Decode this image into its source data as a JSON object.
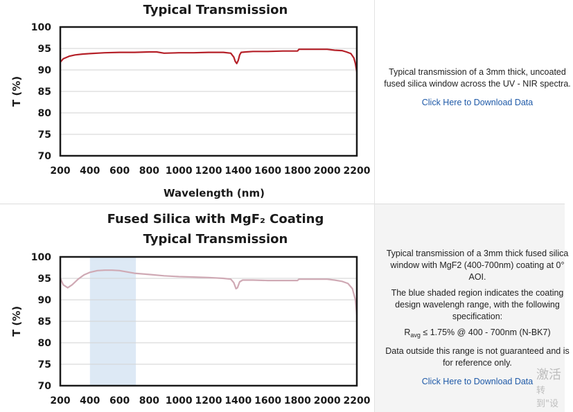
{
  "charts": [
    {
      "type": "line",
      "title_lines": [
        "Typical Transmission"
      ],
      "xlabel": "Wavelength (nm)",
      "ylabel": "T (%)",
      "xlim": [
        200,
        2200
      ],
      "ylim": [
        70,
        100
      ],
      "xticks": [
        200,
        400,
        600,
        800,
        1000,
        1200,
        1400,
        1600,
        1800,
        2000,
        2200
      ],
      "yticks": [
        70,
        75,
        80,
        85,
        90,
        95,
        100
      ],
      "grid": true,
      "line_color": "#b52028",
      "series": [
        {
          "x": [
            200,
            220,
            260,
            300,
            350,
            400,
            500,
            600,
            700,
            800,
            850,
            900,
            1000,
            1100,
            1200,
            1300,
            1350,
            1370,
            1380,
            1390,
            1400,
            1410,
            1420,
            1450,
            1500,
            1600,
            1700,
            1800,
            1810,
            1900,
            2000,
            2050,
            2100,
            2130,
            2160,
            2180,
            2190,
            2200
          ],
          "y": [
            91.8,
            92.6,
            93.2,
            93.5,
            93.7,
            93.8,
            94.0,
            94.1,
            94.1,
            94.2,
            94.2,
            93.9,
            94.0,
            94.0,
            94.1,
            94.1,
            93.9,
            93.0,
            92.0,
            91.5,
            92.2,
            93.5,
            94.1,
            94.2,
            94.3,
            94.3,
            94.4,
            94.4,
            94.8,
            94.8,
            94.8,
            94.6,
            94.5,
            94.2,
            93.8,
            92.8,
            91.5,
            89.5
          ]
        }
      ]
    },
    {
      "type": "line",
      "title_lines": [
        "Fused Silica with MgF₂ Coating",
        "Typical Transmission"
      ],
      "xlabel": "",
      "ylabel": "T (%)",
      "xlim": [
        200,
        2200
      ],
      "ylim": [
        70,
        100
      ],
      "xticks": [
        200,
        400,
        600,
        800,
        1000,
        1200,
        1400,
        1600,
        1800,
        2000,
        2200
      ],
      "yticks": [
        70,
        75,
        80,
        85,
        90,
        95,
        100
      ],
      "grid": true,
      "line_color": "#cfa9b4",
      "shade_color": "#dde9f5",
      "shaded_range": [
        400,
        710
      ],
      "series": [
        {
          "x": [
            200,
            220,
            250,
            280,
            320,
            360,
            400,
            450,
            500,
            550,
            600,
            700,
            800,
            900,
            1000,
            1100,
            1200,
            1300,
            1350,
            1370,
            1385,
            1395,
            1410,
            1430,
            1500,
            1600,
            1700,
            1800,
            1810,
            1900,
            2000,
            2050,
            2100,
            2140,
            2170,
            2190,
            2200
          ],
          "y": [
            95.0,
            93.5,
            92.8,
            93.5,
            94.8,
            95.8,
            96.4,
            96.8,
            96.9,
            96.9,
            96.8,
            96.2,
            95.9,
            95.6,
            95.4,
            95.3,
            95.2,
            95.0,
            94.8,
            94.0,
            92.6,
            92.8,
            94.2,
            94.6,
            94.6,
            94.5,
            94.5,
            94.5,
            94.8,
            94.8,
            94.8,
            94.6,
            94.3,
            93.8,
            92.6,
            90.0,
            86.5
          ]
        }
      ]
    }
  ],
  "desc1": {
    "text": "Typical transmission of a 3mm thick, uncoated fused silica window across the UV - NIR spectra.",
    "link": "Click Here to Download Data"
  },
  "desc2": {
    "p1": "Typical transmission of a 3mm thick fused silica window with MgF2 (400-700nm) coating at 0° AOI.",
    "p2": "The blue shaded region indicates the coating design wavelengh range, with the following specification:",
    "spec_main": "R",
    "spec_sub": "avg",
    "spec_rest": " ≤ 1.75% @ 400 - 700nm (N-BK7)",
    "p3": "Data outside this range is not guaranteed and is for reference only.",
    "link": "Click Here to Download Data"
  },
  "watermark": {
    "line1": "激活",
    "line2": "转到\"设"
  }
}
